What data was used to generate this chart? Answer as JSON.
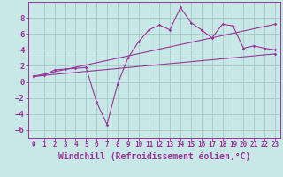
{
  "background_color": "#c8e8e8",
  "grid_color": "#aacccc",
  "line_color": "#993399",
  "xlabel": "Windchill (Refroidissement éolien,°C)",
  "xlabel_fontsize": 7.0,
  "ytick_fontsize": 6.5,
  "xtick_fontsize": 5.5,
  "xlim": [
    -0.5,
    23.5
  ],
  "ylim": [
    -7,
    10
  ],
  "yticks": [
    -6,
    -4,
    -2,
    0,
    2,
    4,
    6,
    8
  ],
  "xticks": [
    0,
    1,
    2,
    3,
    4,
    5,
    6,
    7,
    8,
    9,
    10,
    11,
    12,
    13,
    14,
    15,
    16,
    17,
    18,
    19,
    20,
    21,
    22,
    23
  ],
  "line1_x": [
    0,
    1,
    2,
    3,
    4,
    5,
    6,
    7,
    8,
    9,
    10,
    11,
    12,
    13,
    14,
    15,
    16,
    17,
    18,
    19,
    20,
    21,
    22,
    23
  ],
  "line1_y": [
    0.7,
    0.8,
    1.5,
    1.6,
    1.7,
    1.8,
    -2.5,
    -5.3,
    -0.3,
    3.0,
    5.0,
    6.5,
    7.1,
    6.5,
    9.3,
    7.4,
    6.5,
    5.5,
    7.2,
    7.0,
    4.2,
    4.5,
    4.2,
    4.0
  ],
  "line2_x": [
    0,
    23
  ],
  "line2_y": [
    0.7,
    7.2
  ],
  "line3_x": [
    0,
    23
  ],
  "line3_y": [
    0.7,
    3.5
  ]
}
